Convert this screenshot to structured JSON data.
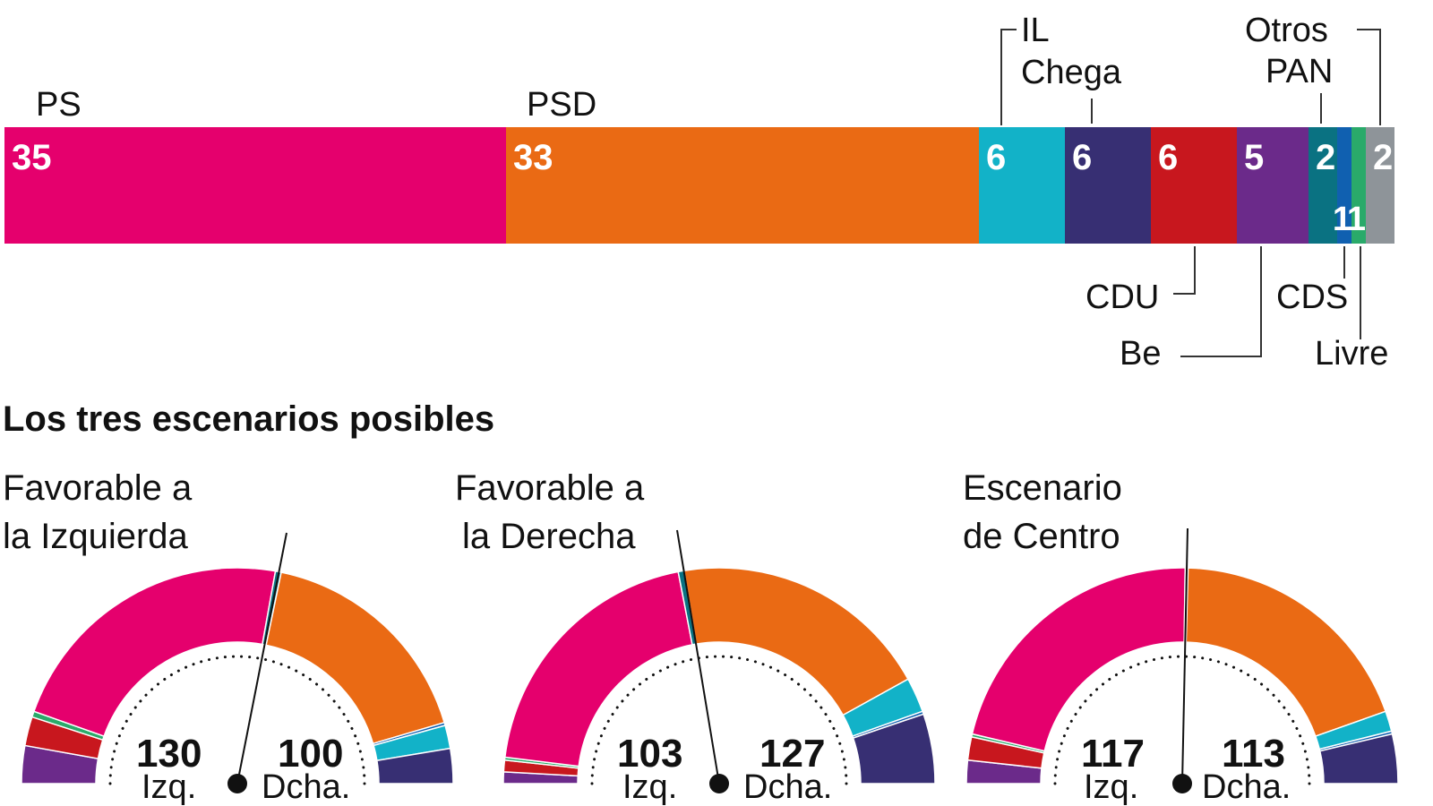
{
  "chart_data": [
    {
      "type": "bar",
      "orientation": "horizontal-stacked",
      "unit": "%",
      "parties": [
        {
          "name": "PS",
          "value": 35,
          "color": "#e5006d"
        },
        {
          "name": "PSD",
          "value": 33,
          "color": "#ea6a14"
        },
        {
          "name": "IL",
          "value": 6,
          "color": "#12b2c8"
        },
        {
          "name": "Chega",
          "value": 6,
          "color": "#372f73"
        },
        {
          "name": "CDU",
          "value": 6,
          "color": "#c8171e"
        },
        {
          "name": "Be",
          "value": 5,
          "color": "#6b2a8a"
        },
        {
          "name": "PAN",
          "value": 2,
          "color": "#0a7282"
        },
        {
          "name": "CDS",
          "value": 1,
          "color": "#1060b0"
        },
        {
          "name": "Livre",
          "value": 1,
          "color": "#2aaa6a"
        },
        {
          "name": "Otros",
          "value": 2,
          "color": "#8e9499"
        }
      ]
    },
    {
      "type": "pie",
      "variant": "half-donut parliament",
      "title": "Los tres escenarios posibles",
      "total_seats": 230,
      "scenarios": [
        {
          "title_line1": "Favorable a",
          "title_line2": "la Izquierda",
          "left_total": "130",
          "right_total": "100",
          "left_label": "Izq.",
          "right_label": "Dcha.",
          "seats": [
            [
              "Be",
              13
            ],
            [
              "CDU",
              10
            ],
            [
              "Livre",
              2
            ],
            [
              "PS",
              103
            ],
            [
              "PAN",
              2
            ],
            [
              "PSD",
              79
            ],
            [
              "CDS",
              1
            ],
            [
              "IL",
              8
            ],
            [
              "Chega",
              12
            ]
          ]
        },
        {
          "title_line1": "Favorable a",
          "title_line2": "la Derecha",
          "left_total": "103",
          "right_total": "127",
          "left_label": "Izq.",
          "right_label": "Dcha.",
          "seats": [
            [
              "Be",
              4
            ],
            [
              "CDU",
              4
            ],
            [
              "Livre",
              1
            ],
            [
              "PS",
              92
            ],
            [
              "PAN",
              2
            ],
            [
              "PSD",
              90
            ],
            [
              "IL",
              12
            ],
            [
              "CDS",
              1
            ],
            [
              "Chega",
              24
            ]
          ]
        },
        {
          "title_line1": "Escenario",
          "title_line2": "de Centro",
          "left_total": "117",
          "right_total": "113",
          "left_label": "Izq.",
          "right_label": "Dcha.",
          "seats": [
            [
              "Be",
              8
            ],
            [
              "CDU",
              8
            ],
            [
              "Livre",
              1
            ],
            [
              "PS",
              99
            ],
            [
              "PAN",
              1
            ],
            [
              "PSD",
              88
            ],
            [
              "IL",
              7
            ],
            [
              "CDS",
              1
            ],
            [
              "Chega",
              17
            ]
          ]
        }
      ]
    }
  ]
}
